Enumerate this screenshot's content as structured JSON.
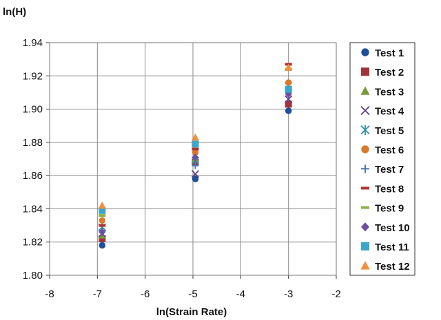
{
  "chart_data": {
    "type": "scatter",
    "title": "",
    "xlabel": "ln(Strain Rate)",
    "ylabel": "ln(H)",
    "xlim": [
      -8,
      -2
    ],
    "ylim": [
      1.8,
      1.94
    ],
    "x_ticks": [
      -8,
      -7,
      -6,
      -5,
      -4,
      -3,
      -2
    ],
    "y_ticks": [
      1.8,
      1.82,
      1.84,
      1.86,
      1.88,
      1.9,
      1.92,
      1.94
    ],
    "x_tick_labels": [
      "-8",
      "-7",
      "-6",
      "-5",
      "-4",
      "-3",
      "-2"
    ],
    "y_tick_labels": [
      "1.80",
      "1.82",
      "1.84",
      "1.86",
      "1.88",
      "1.90",
      "1.92",
      "1.94"
    ],
    "grid": true,
    "legend_position": "right",
    "x": [
      -6.9,
      -4.95,
      -3.0
    ],
    "series": [
      {
        "name": "Test 1",
        "marker": "circle",
        "color": "#1F4E9A",
        "values": [
          1.818,
          1.858,
          1.899
        ]
      },
      {
        "name": "Test 2",
        "marker": "square",
        "color": "#A2333B",
        "values": [
          1.822,
          1.868,
          1.903
        ]
      },
      {
        "name": "Test 3",
        "marker": "triangle",
        "color": "#7A9A3A",
        "values": [
          1.824,
          1.87,
          1.925
        ]
      },
      {
        "name": "Test 4",
        "marker": "x",
        "color": "#5E3F87",
        "values": [
          1.825,
          1.861,
          1.906
        ]
      },
      {
        "name": "Test 5",
        "marker": "star",
        "color": "#2E8FA8",
        "values": [
          1.829,
          1.869,
          1.914
        ]
      },
      {
        "name": "Test 6",
        "marker": "circle",
        "color": "#D97A2B",
        "values": [
          1.833,
          1.874,
          1.916
        ]
      },
      {
        "name": "Test 7",
        "marker": "plus",
        "color": "#4A77B4",
        "values": [
          1.827,
          1.866,
          1.91
        ]
      },
      {
        "name": "Test 8",
        "marker": "dash",
        "color": "#B23234",
        "values": [
          1.83,
          1.876,
          1.927
        ]
      },
      {
        "name": "Test 9",
        "marker": "dash",
        "color": "#8DB04A",
        "values": [
          1.836,
          1.879,
          1.924
        ]
      },
      {
        "name": "Test 10",
        "marker": "diamond",
        "color": "#6B4FA0",
        "values": [
          1.826,
          1.871,
          1.909
        ]
      },
      {
        "name": "Test 11",
        "marker": "square",
        "color": "#3BA6C9",
        "values": [
          1.839,
          1.879,
          1.912
        ]
      },
      {
        "name": "Test 12",
        "marker": "triangle",
        "color": "#F28F3B",
        "values": [
          1.842,
          1.883,
          1.925
        ]
      }
    ]
  }
}
